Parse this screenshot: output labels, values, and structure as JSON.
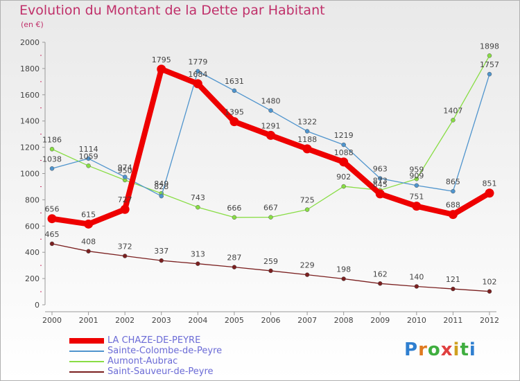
{
  "title": "Evolution du Montant de la Dette par Habitant",
  "unit_label": "(en €)",
  "logo_text": "Proxiti",
  "chart_data": {
    "type": "line",
    "x": [
      "2000",
      "2001",
      "2002",
      "2003",
      "2004",
      "2005",
      "2006",
      "2007",
      "2008",
      "2009",
      "2010",
      "2011",
      "2012"
    ],
    "ylim": [
      0,
      2000
    ],
    "yticks": [
      0,
      200,
      400,
      600,
      800,
      1000,
      1200,
      1400,
      1600,
      1800,
      2000
    ],
    "grid": false,
    "legend_position": "bottom-left",
    "series": [
      {
        "name": "LA CHAZE-DE-PEYRE",
        "color": "#ee0000",
        "width": 8,
        "values": [
          656,
          615,
          727,
          1795,
          1684,
          1395,
          1291,
          1188,
          1088,
          845,
          751,
          688,
          851
        ]
      },
      {
        "name": "Sainte-Colombe-de-Peyre",
        "color": "#4f94cd",
        "width": 1.3,
        "values": [
          1038,
          1114,
          974,
          828,
          1779,
          1631,
          1480,
          1322,
          1219,
          963,
          909,
          865,
          1757
        ]
      },
      {
        "name": "Aumont-Aubrac",
        "color": "#88dd44",
        "width": 1.3,
        "values": [
          1186,
          1059,
          950,
          849,
          743,
          666,
          667,
          725,
          902,
          873,
          959,
          1407,
          1898
        ]
      },
      {
        "name": "Saint-Sauveur-de-Peyre",
        "color": "#7a1f1f",
        "width": 1.3,
        "values": [
          465,
          408,
          372,
          337,
          313,
          287,
          259,
          229,
          198,
          162,
          140,
          121,
          102
        ]
      }
    ]
  }
}
